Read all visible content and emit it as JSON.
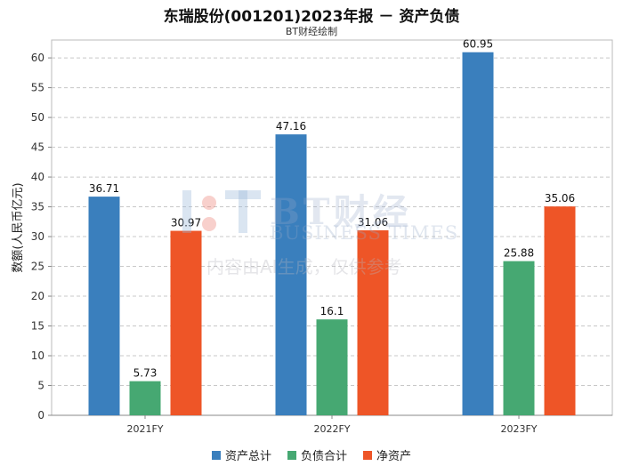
{
  "chart_data": {
    "type": "bar",
    "title": "东瑞股份(001201)2023年报 － 资产负债",
    "subtitle": "BT财经绘制",
    "ylabel": "数额(人民币亿元)",
    "xlabel": "",
    "categories": [
      "2021FY",
      "2022FY",
      "2023FY"
    ],
    "ylim": [
      0,
      63
    ],
    "yticks": [
      0,
      5,
      10,
      15,
      20,
      25,
      30,
      35,
      40,
      45,
      50,
      55,
      60
    ],
    "grid": true,
    "legend_position": "bottom",
    "series": [
      {
        "name": "资产总计",
        "color": "#3a7fbd",
        "values": [
          36.71,
          47.16,
          60.95
        ]
      },
      {
        "name": "负债合计",
        "color": "#46a872",
        "values": [
          5.73,
          16.1,
          25.88
        ]
      },
      {
        "name": "净资产",
        "color": "#ee5527",
        "values": [
          30.97,
          31.06,
          35.06
        ]
      }
    ]
  },
  "watermark": {
    "brand": "BT财经",
    "brand_en": "BUSINESS TIMES",
    "note": "内容由AI生成，仅供参考"
  }
}
